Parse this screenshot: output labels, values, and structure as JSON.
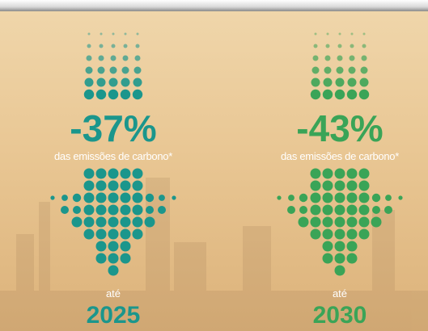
{
  "panels": [
    {
      "value": "-37%",
      "caption": "das emissões de carbono*",
      "until": "até",
      "year": "2025"
    },
    {
      "value": "-43%",
      "caption": "das emissões de carbono*",
      "until": "até",
      "year": "2030"
    }
  ]
}
